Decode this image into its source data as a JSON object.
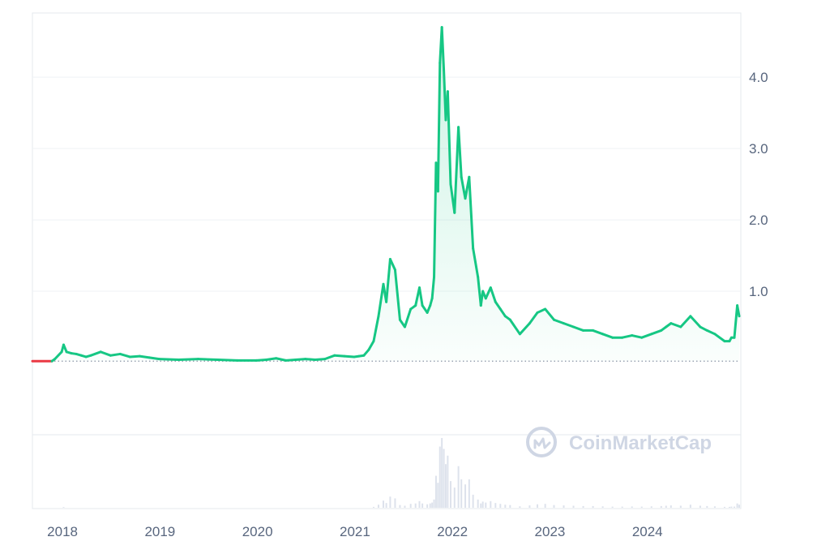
{
  "chart_data": {
    "type": "line",
    "watermark": "CoinMarketCap",
    "colors": {
      "up": "#16c784",
      "down": "#ea3943",
      "grid": "#eff2f5",
      "text": "#58667e",
      "volume": "#cfd6e4"
    },
    "x_ticks": [
      "2018",
      "2019",
      "2020",
      "2021",
      "2022",
      "2023",
      "2024"
    ],
    "y_ticks": [
      "1.0",
      "2.0",
      "3.0",
      "4.0"
    ],
    "ylim": [
      0,
      4.9
    ],
    "xlim": [
      2017.7,
      2024.95
    ],
    "baseline": 0.02,
    "grid": true,
    "series": [
      {
        "x": [
          2017.7,
          2017.9,
          2017.93,
          2018.0,
          2018.02,
          2018.05,
          2018.1,
          2018.15,
          2018.2,
          2018.25,
          2018.3,
          2018.4,
          2018.5,
          2018.6,
          2018.7,
          2018.8,
          2018.9,
          2019.0,
          2019.2,
          2019.4,
          2019.6,
          2019.8,
          2020.0,
          2020.1,
          2020.2,
          2020.3,
          2020.4,
          2020.5,
          2020.6,
          2020.7,
          2020.8,
          2020.9,
          2021.0,
          2021.05,
          2021.1,
          2021.15,
          2021.2,
          2021.25,
          2021.3,
          2021.33,
          2021.37,
          2021.42,
          2021.47,
          2021.52,
          2021.58,
          2021.63,
          2021.67,
          2021.7,
          2021.75,
          2021.78,
          2021.8,
          2021.82,
          2021.84,
          2021.86,
          2021.88,
          2021.9,
          2021.92,
          2021.94,
          2021.96,
          2021.99,
          2022.03,
          2022.07,
          2022.1,
          2022.14,
          2022.18,
          2022.22,
          2022.27,
          2022.3,
          2022.32,
          2022.35,
          2022.4,
          2022.45,
          2022.5,
          2022.55,
          2022.6,
          2022.7,
          2022.8,
          2022.88,
          2022.96,
          2023.05,
          2023.15,
          2023.25,
          2023.35,
          2023.45,
          2023.55,
          2023.65,
          2023.75,
          2023.85,
          2023.95,
          2024.05,
          2024.15,
          2024.2,
          2024.25,
          2024.35,
          2024.45,
          2024.55,
          2024.62,
          2024.7,
          2024.8,
          2024.85,
          2024.87,
          2024.9,
          2024.93,
          2024.95
        ],
        "y": [
          0.02,
          0.02,
          0.05,
          0.15,
          0.25,
          0.15,
          0.13,
          0.12,
          0.1,
          0.08,
          0.1,
          0.15,
          0.1,
          0.12,
          0.08,
          0.09,
          0.07,
          0.05,
          0.04,
          0.05,
          0.04,
          0.03,
          0.03,
          0.04,
          0.06,
          0.03,
          0.04,
          0.05,
          0.04,
          0.05,
          0.1,
          0.09,
          0.08,
          0.09,
          0.1,
          0.18,
          0.3,
          0.65,
          1.1,
          0.85,
          1.45,
          1.3,
          0.6,
          0.5,
          0.75,
          0.8,
          1.05,
          0.8,
          0.7,
          0.8,
          0.9,
          1.2,
          2.8,
          2.4,
          4.2,
          4.7,
          4.1,
          3.4,
          3.8,
          2.5,
          2.1,
          3.3,
          2.6,
          2.3,
          2.6,
          1.6,
          1.2,
          0.8,
          1.0,
          0.9,
          1.05,
          0.85,
          0.75,
          0.65,
          0.6,
          0.4,
          0.55,
          0.7,
          0.75,
          0.6,
          0.55,
          0.5,
          0.45,
          0.45,
          0.4,
          0.35,
          0.35,
          0.38,
          0.35,
          0.4,
          0.45,
          0.5,
          0.55,
          0.5,
          0.65,
          0.5,
          0.45,
          0.4,
          0.3,
          0.3,
          0.35,
          0.35,
          0.8,
          0.65
        ]
      }
    ]
  }
}
